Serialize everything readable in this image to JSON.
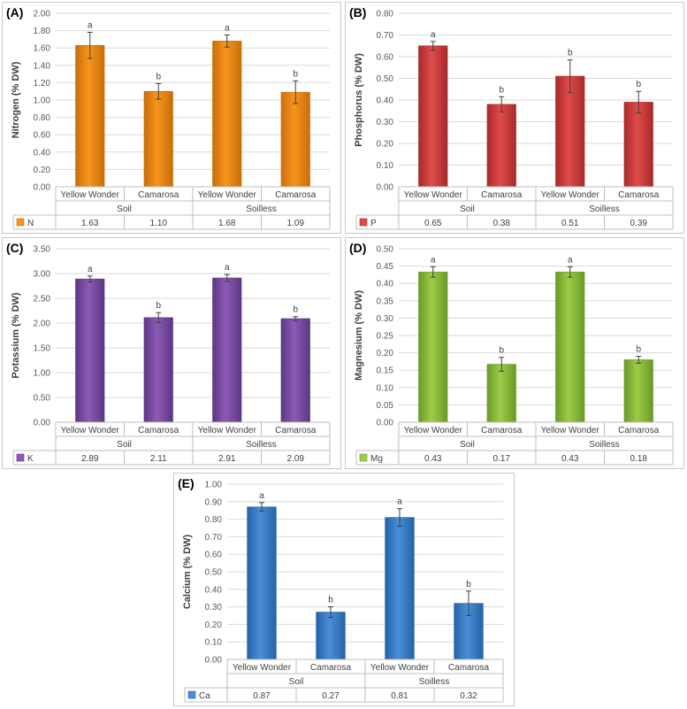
{
  "colors": {
    "grid": "#d9d9d9",
    "axis": "#bfbfbf",
    "errorbar": "#404040"
  },
  "chart_data": [
    {
      "type": "bar",
      "panel": "(A)",
      "ylabel": "Nitrogen (% DW)",
      "ylim": [
        0,
        2.0
      ],
      "yticks": [
        "0.00",
        "0.20",
        "0.40",
        "0.60",
        "0.80",
        "1.00",
        "1.20",
        "1.40",
        "1.60",
        "1.80",
        "2.00"
      ],
      "categories": [
        "Yellow Wonder",
        "Camarosa",
        "Yellow Wonder",
        "Camarosa"
      ],
      "groups": [
        "Soil",
        "Soilless"
      ],
      "series": [
        {
          "name": "N",
          "values": [
            1.63,
            1.1,
            1.68,
            1.09
          ],
          "color": "#f7941d",
          "dark": "#c96e0a"
        }
      ],
      "value_labels": [
        "1.63",
        "1.10",
        "1.68",
        "1.09"
      ],
      "errors": [
        0.15,
        0.09,
        0.07,
        0.13
      ],
      "letters": [
        "a",
        "b",
        "a",
        "b"
      ]
    },
    {
      "type": "bar",
      "panel": "(B)",
      "ylabel": "Phosphorus (% DW)",
      "ylim": [
        0,
        0.8
      ],
      "yticks": [
        "0.00",
        "0.10",
        "0.20",
        "0.30",
        "0.40",
        "0.50",
        "0.60",
        "0.70",
        "0.80"
      ],
      "categories": [
        "Yellow Wonder",
        "Camarosa",
        "Yellow Wonder",
        "Camarosa"
      ],
      "groups": [
        "Soil",
        "Soilless"
      ],
      "series": [
        {
          "name": "P",
          "values": [
            0.65,
            0.38,
            0.51,
            0.39
          ],
          "color": "#e04b4b",
          "dark": "#a82a2a"
        }
      ],
      "value_labels": [
        "0.65",
        "0.38",
        "0.51",
        "0.39"
      ],
      "errors": [
        0.02,
        0.035,
        0.075,
        0.05
      ],
      "letters": [
        "a",
        "b",
        "b",
        "b"
      ]
    },
    {
      "type": "bar",
      "panel": "(C)",
      "ylabel": "Potassium (% DW)",
      "ylim": [
        0,
        3.5
      ],
      "yticks": [
        "0.00",
        "0.50",
        "1.00",
        "1.50",
        "2.00",
        "2.50",
        "3.00",
        "3.50"
      ],
      "categories": [
        "Yellow Wonder",
        "Camarosa",
        "Yellow Wonder",
        "Camarosa"
      ],
      "groups": [
        "Soil",
        "Soilless"
      ],
      "series": [
        {
          "name": "K",
          "values": [
            2.89,
            2.11,
            2.91,
            2.09
          ],
          "color": "#8b5bb5",
          "dark": "#5d3785"
        }
      ],
      "value_labels": [
        "2.89",
        "2.11",
        "2.91",
        "2.09"
      ],
      "errors": [
        0.06,
        0.1,
        0.07,
        0.04
      ],
      "letters": [
        "a",
        "b",
        "a",
        "b"
      ]
    },
    {
      "type": "bar",
      "panel": "(D)",
      "ylabel": "Magnesium (% DW)",
      "ylim": [
        0,
        0.5
      ],
      "yticks": [
        "0.00",
        "0.05",
        "0.10",
        "0.15",
        "0.20",
        "0.25",
        "0.30",
        "0.35",
        "0.40",
        "0.45",
        "0.50"
      ],
      "categories": [
        "Yellow Wonder",
        "Camarosa",
        "Yellow Wonder",
        "Camarosa"
      ],
      "groups": [
        "Soil",
        "Soilless"
      ],
      "series": [
        {
          "name": "Mg",
          "values": [
            0.433,
            0.167,
            0.433,
            0.18
          ],
          "color": "#9dcc4a",
          "dark": "#6a9a26"
        }
      ],
      "value_labels": [
        "0.43",
        "0.17",
        "0.43",
        "0.18"
      ],
      "errors": [
        0.015,
        0.02,
        0.015,
        0.01
      ],
      "letters": [
        "a",
        "b",
        "a",
        "b"
      ]
    },
    {
      "type": "bar",
      "panel": "(E)",
      "ylabel": "Calcium (% DW)",
      "ylim": [
        0,
        1.0
      ],
      "yticks": [
        "0.00",
        "0.10",
        "0.20",
        "0.30",
        "0.40",
        "0.50",
        "0.60",
        "0.70",
        "0.80",
        "0.90",
        "1.00"
      ],
      "categories": [
        "Yellow Wonder",
        "Camarosa",
        "Yellow Wonder",
        "Camarosa"
      ],
      "groups": [
        "Soil",
        "Soilless"
      ],
      "series": [
        {
          "name": "Ca",
          "values": [
            0.87,
            0.27,
            0.81,
            0.32
          ],
          "color": "#4a8fd6",
          "dark": "#2462a8"
        }
      ],
      "value_labels": [
        "0.87",
        "0.27",
        "0.81",
        "0.32"
      ],
      "errors": [
        0.025,
        0.03,
        0.05,
        0.07
      ],
      "letters": [
        "a",
        "b",
        "a",
        "b"
      ]
    }
  ]
}
